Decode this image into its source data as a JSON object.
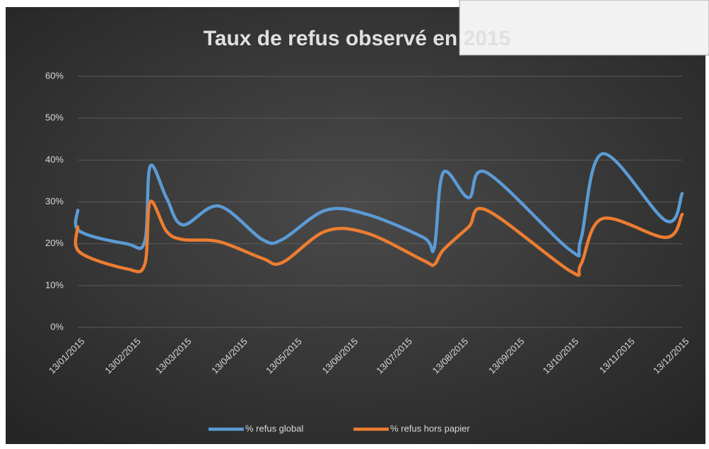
{
  "chart_data": {
    "type": "line",
    "title": "Taux de refus observé en 2015",
    "x": [
      "13/01/2015",
      "14/01/2015",
      "09/02/2015",
      "19/02/2015",
      "22/02/2015",
      "03/03/2015",
      "12/03/2015",
      "01/04/2015",
      "25/04/2015",
      "06/05/2015",
      "30/05/2015",
      "22/06/2015",
      "23/07/2015",
      "29/07/2015",
      "03/08/2015",
      "17/08/2015",
      "27/08/2015",
      "12/10/2015",
      "18/10/2015",
      "30/10/2015",
      "04/12/2015",
      "13/12/2015"
    ],
    "series": [
      {
        "name": "% refus global",
        "color": "#5b9bd5",
        "values": [
          28,
          23,
          20,
          20.5,
          38.5,
          31,
          24.5,
          29,
          21,
          21,
          28,
          27,
          21.5,
          19,
          37,
          31,
          37,
          18.5,
          21,
          41.5,
          25.5,
          32
        ]
      },
      {
        "name": "% refus hors papier",
        "color": "#ed7d31",
        "values": [
          24,
          18,
          14,
          15,
          30,
          23,
          21,
          20.5,
          16.5,
          15.5,
          23,
          22.5,
          16,
          15,
          18.5,
          24,
          28,
          13.5,
          15,
          26,
          21.5,
          27
        ]
      }
    ],
    "xlim": [
      "13/01/2015",
      "13/12/2015"
    ],
    "xticks": [
      "13/01/2015",
      "13/02/2015",
      "13/03/2015",
      "13/04/2015",
      "13/05/2015",
      "13/06/2015",
      "13/07/2015",
      "13/08/2015",
      "13/09/2015",
      "13/10/2015",
      "13/11/2015",
      "13/12/2015"
    ],
    "ylim": [
      0,
      60
    ],
    "yticks": [
      {
        "value": 0,
        "label": "0%"
      },
      {
        "value": 10,
        "label": "10%"
      },
      {
        "value": 20,
        "label": "20%"
      },
      {
        "value": 30,
        "label": "30%"
      },
      {
        "value": 40,
        "label": "40%"
      },
      {
        "value": 50,
        "label": "50%"
      },
      {
        "value": 60,
        "label": "60%"
      }
    ],
    "grid": true,
    "legend": "bottom"
  }
}
